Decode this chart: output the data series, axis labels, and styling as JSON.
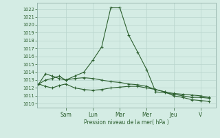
{
  "background_color": "#d4ece4",
  "grid_color": "#b8d4cc",
  "line_color": "#2d6030",
  "marker_color": "#2d6030",
  "xlabel": "Pression niveau de la mer( hPa )",
  "ylim": [
    1009.5,
    1022.8
  ],
  "yticks": [
    1010,
    1011,
    1012,
    1013,
    1014,
    1015,
    1016,
    1017,
    1018,
    1019,
    1020,
    1021,
    1022
  ],
  "day_labels": [
    "Sam",
    "Lun",
    "Mar",
    "Mer",
    "Jeu",
    "V"
  ],
  "day_tick_positions": [
    1.0,
    2.0,
    3.0,
    4.0,
    5.0,
    6.0
  ],
  "xlim": [
    -0.05,
    6.55
  ],
  "series1_x": [
    0.0,
    0.25,
    0.5,
    0.75,
    1.0,
    1.33,
    1.67,
    2.0,
    2.33,
    2.67,
    3.0,
    3.33,
    3.67,
    4.0,
    4.33,
    4.67,
    5.0,
    5.33,
    5.67,
    6.0,
    6.3
  ],
  "series1_y": [
    1012.5,
    1013.8,
    1013.5,
    1013.2,
    1013.0,
    1013.5,
    1014.0,
    1015.5,
    1017.2,
    1022.2,
    1022.2,
    1018.7,
    1016.5,
    1014.3,
    1011.5,
    1011.4,
    1011.2,
    1011.0,
    1010.8,
    1010.8,
    1010.7
  ],
  "series2_x": [
    0.0,
    0.25,
    0.5,
    0.75,
    1.0,
    1.33,
    1.67,
    2.0,
    2.33,
    2.67,
    3.0,
    3.33,
    3.67,
    4.0,
    4.33,
    4.67,
    5.0,
    5.33,
    5.67,
    6.0,
    6.3
  ],
  "series2_y": [
    1012.5,
    1013.0,
    1013.2,
    1013.5,
    1013.0,
    1013.2,
    1013.3,
    1013.2,
    1013.0,
    1012.8,
    1012.7,
    1012.5,
    1012.4,
    1012.2,
    1011.8,
    1011.5,
    1011.3,
    1011.2,
    1011.1,
    1011.0,
    1010.8
  ],
  "series3_x": [
    0.0,
    0.25,
    0.5,
    0.75,
    1.0,
    1.33,
    1.67,
    2.0,
    2.33,
    2.67,
    3.0,
    3.33,
    3.67,
    4.0,
    4.33,
    4.67,
    5.0,
    5.33,
    5.67,
    6.0,
    6.3
  ],
  "series3_y": [
    1012.5,
    1012.2,
    1012.0,
    1012.3,
    1012.5,
    1012.0,
    1011.8,
    1011.7,
    1011.8,
    1012.0,
    1012.1,
    1012.2,
    1012.2,
    1012.0,
    1011.8,
    1011.5,
    1011.0,
    1010.8,
    1010.5,
    1010.4,
    1010.3
  ]
}
